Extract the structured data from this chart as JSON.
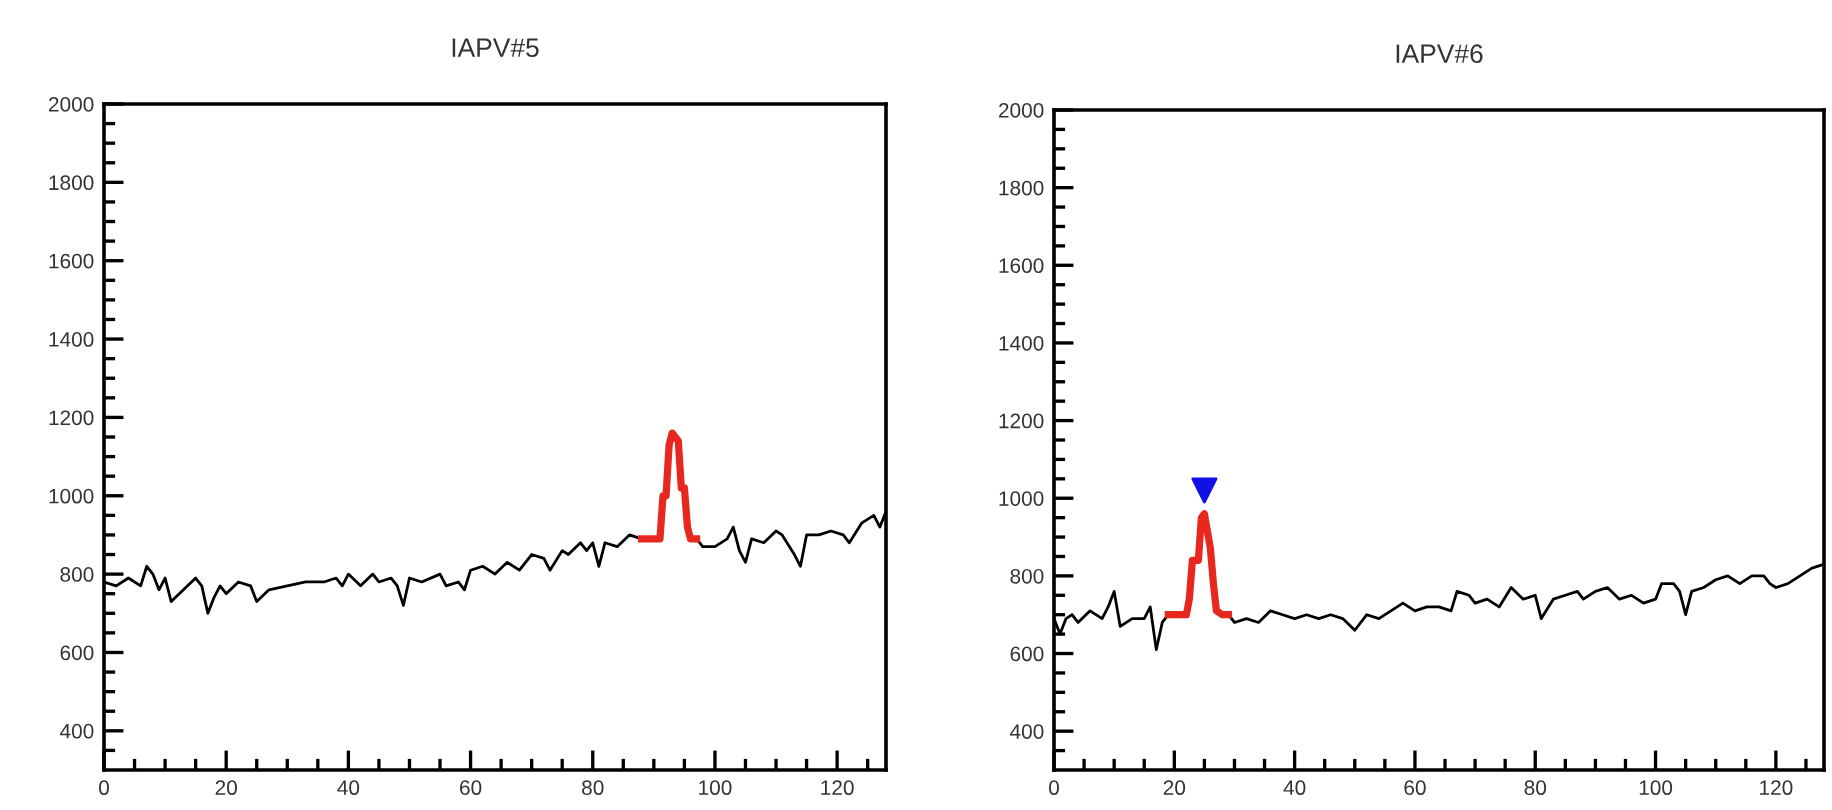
{
  "chart_data": [
    {
      "type": "line",
      "title": "IAPV#5",
      "xlim": [
        0,
        128
      ],
      "ylim": [
        300,
        2000
      ],
      "xticks": [
        0,
        {
          "value": 5,
          "label": null
        },
        {
          "value": 10,
          "label": null
        },
        {
          "value": 15,
          "label": null
        },
        20,
        {
          "value": 25,
          "label": null
        },
        {
          "value": 30,
          "label": null
        },
        {
          "value": 35,
          "label": null
        },
        40,
        {
          "value": 45,
          "label": null
        },
        {
          "value": 50,
          "label": null
        },
        {
          "value": 55,
          "label": null
        },
        60,
        {
          "value": 65,
          "label": null
        },
        {
          "value": 70,
          "label": null
        },
        {
          "value": 75,
          "label": null
        },
        80,
        {
          "value": 85,
          "label": null
        },
        {
          "value": 90,
          "label": null
        },
        {
          "value": 95,
          "label": null
        },
        100,
        {
          "value": 105,
          "label": null
        },
        {
          "value": 110,
          "label": null
        },
        {
          "value": 115,
          "label": null
        },
        120,
        {
          "value": 125,
          "label": null
        }
      ],
      "yticks": [
        {
          "value": 350,
          "label": null
        },
        400,
        {
          "value": 450,
          "label": null
        },
        {
          "value": 500,
          "label": null
        },
        {
          "value": 550,
          "label": null
        },
        600,
        {
          "value": 650,
          "label": null
        },
        {
          "value": 700,
          "label": null
        },
        {
          "value": 750,
          "label": null
        },
        800,
        {
          "value": 850,
          "label": null
        },
        {
          "value": 900,
          "label": null
        },
        {
          "value": 950,
          "label": null
        },
        1000,
        {
          "value": 1050,
          "label": null
        },
        {
          "value": 1100,
          "label": null
        },
        {
          "value": 1150,
          "label": null
        },
        1200,
        {
          "value": 1250,
          "label": null
        },
        {
          "value": 1300,
          "label": null
        },
        {
          "value": 1350,
          "label": null
        },
        1400,
        {
          "value": 1450,
          "label": null
        },
        {
          "value": 1500,
          "label": null
        },
        {
          "value": 1550,
          "label": null
        },
        1600,
        {
          "value": 1650,
          "label": null
        },
        {
          "value": 1700,
          "label": null
        },
        {
          "value": 1750,
          "label": null
        },
        1800,
        {
          "value": 1850,
          "label": null
        },
        {
          "value": 1900,
          "label": null
        },
        {
          "value": 1950,
          "label": null
        },
        2000
      ],
      "grid": false,
      "legend": false,
      "series": [
        {
          "color": "#000000",
          "x": [
            0,
            2,
            4,
            6,
            7,
            8,
            9,
            10,
            11,
            13,
            15,
            16,
            17,
            18,
            19,
            20,
            22,
            24,
            25,
            27,
            30,
            33,
            36,
            38,
            39,
            40,
            42,
            44,
            45,
            47,
            48,
            49,
            50,
            52,
            55,
            56,
            58,
            59,
            60,
            62,
            64,
            66,
            68,
            70,
            72,
            73,
            75,
            76,
            78,
            79,
            80,
            81,
            82,
            84,
            86,
            88,
            92,
            97,
            98,
            100,
            102,
            103,
            104,
            105,
            106,
            108,
            110,
            111,
            113,
            114,
            115,
            117,
            119,
            121,
            122,
            124,
            126,
            127,
            128
          ],
          "values": [
            780,
            770,
            790,
            770,
            820,
            800,
            760,
            790,
            730,
            760,
            790,
            770,
            700,
            740,
            770,
            750,
            780,
            770,
            730,
            760,
            770,
            780,
            780,
            790,
            770,
            800,
            770,
            800,
            780,
            790,
            770,
            720,
            790,
            780,
            800,
            770,
            780,
            760,
            810,
            820,
            800,
            830,
            810,
            850,
            840,
            810,
            860,
            850,
            880,
            860,
            880,
            820,
            880,
            870,
            900,
            890,
            null,
            890,
            870,
            870,
            890,
            920,
            860,
            830,
            890,
            880,
            910,
            900,
            850,
            820,
            900,
            900,
            910,
            900,
            880,
            930,
            950,
            920,
            960
          ]
        },
        {
          "color": "#e8281e",
          "x": [
            88,
            91,
            91.5,
            92,
            92.5,
            93,
            94,
            94.5,
            95,
            95.5,
            96,
            97
          ],
          "values": [
            890,
            890,
            1000,
            1000,
            1130,
            1160,
            1140,
            1020,
            1020,
            920,
            890,
            890
          ]
        }
      ]
    },
    {
      "type": "line",
      "title": "IAPV#6",
      "xlim": [
        0,
        128
      ],
      "ylim": [
        300,
        2000
      ],
      "xticks": [
        0,
        {
          "value": 5,
          "label": null
        },
        {
          "value": 10,
          "label": null
        },
        {
          "value": 15,
          "label": null
        },
        20,
        {
          "value": 25,
          "label": null
        },
        {
          "value": 30,
          "label": null
        },
        {
          "value": 35,
          "label": null
        },
        40,
        {
          "value": 45,
          "label": null
        },
        {
          "value": 50,
          "label": null
        },
        {
          "value": 55,
          "label": null
        },
        60,
        {
          "value": 65,
          "label": null
        },
        {
          "value": 70,
          "label": null
        },
        {
          "value": 75,
          "label": null
        },
        80,
        {
          "value": 85,
          "label": null
        },
        {
          "value": 90,
          "label": null
        },
        {
          "value": 95,
          "label": null
        },
        100,
        {
          "value": 105,
          "label": null
        },
        {
          "value": 110,
          "label": null
        },
        {
          "value": 115,
          "label": null
        },
        120,
        {
          "value": 125,
          "label": null
        }
      ],
      "yticks": [
        {
          "value": 350,
          "label": null
        },
        400,
        {
          "value": 450,
          "label": null
        },
        {
          "value": 500,
          "label": null
        },
        {
          "value": 550,
          "label": null
        },
        600,
        {
          "value": 650,
          "label": null
        },
        {
          "value": 700,
          "label": null
        },
        {
          "value": 750,
          "label": null
        },
        800,
        {
          "value": 850,
          "label": null
        },
        {
          "value": 900,
          "label": null
        },
        {
          "value": 950,
          "label": null
        },
        1000,
        {
          "value": 1050,
          "label": null
        },
        {
          "value": 1100,
          "label": null
        },
        {
          "value": 1150,
          "label": null
        },
        1200,
        {
          "value": 1250,
          "label": null
        },
        {
          "value": 1300,
          "label": null
        },
        {
          "value": 1350,
          "label": null
        },
        1400,
        {
          "value": 1450,
          "label": null
        },
        {
          "value": 1500,
          "label": null
        },
        {
          "value": 1550,
          "label": null
        },
        1600,
        {
          "value": 1650,
          "label": null
        },
        {
          "value": 1700,
          "label": null
        },
        {
          "value": 1750,
          "label": null
        },
        1800,
        {
          "value": 1850,
          "label": null
        },
        {
          "value": 1900,
          "label": null
        },
        {
          "value": 1950,
          "label": null
        },
        2000
      ],
      "grid": false,
      "legend": false,
      "series": [
        {
          "color": "#000000",
          "x": [
            0,
            1,
            2,
            3,
            4,
            6,
            8,
            9,
            10,
            11,
            13,
            15,
            16,
            17,
            18,
            19,
            24,
            29,
            30,
            32,
            34,
            36,
            38,
            40,
            42,
            44,
            46,
            48,
            50,
            52,
            54,
            56,
            58,
            60,
            62,
            64,
            66,
            67,
            69,
            70,
            72,
            74,
            76,
            78,
            80,
            81,
            83,
            85,
            87,
            88,
            90,
            92,
            94,
            96,
            98,
            100,
            101,
            103,
            104,
            105,
            106,
            108,
            110,
            112,
            114,
            116,
            118,
            119,
            120,
            122,
            124,
            126,
            128
          ],
          "values": [
            690,
            650,
            690,
            700,
            680,
            710,
            690,
            720,
            760,
            670,
            690,
            690,
            720,
            610,
            680,
            700,
            null,
            700,
            680,
            690,
            680,
            710,
            700,
            690,
            700,
            690,
            700,
            690,
            660,
            700,
            690,
            710,
            730,
            710,
            720,
            720,
            710,
            760,
            750,
            730,
            740,
            720,
            770,
            740,
            750,
            690,
            740,
            750,
            760,
            740,
            760,
            770,
            740,
            750,
            730,
            740,
            780,
            780,
            760,
            700,
            760,
            770,
            790,
            800,
            780,
            800,
            800,
            780,
            770,
            780,
            800,
            820,
            830
          ]
        },
        {
          "color": "#e8281e",
          "x": [
            19,
            22,
            22.5,
            23,
            24,
            24.5,
            25,
            26,
            26.5,
            27,
            28,
            29
          ],
          "values": [
            700,
            700,
            740,
            840,
            840,
            950,
            960,
            870,
            780,
            710,
            700,
            700
          ]
        },
        {
          "type": "scatter",
          "color": "#1010e8",
          "marker": "triangle",
          "x": [
            25
          ],
          "values": [
            1020
          ]
        }
      ]
    }
  ]
}
